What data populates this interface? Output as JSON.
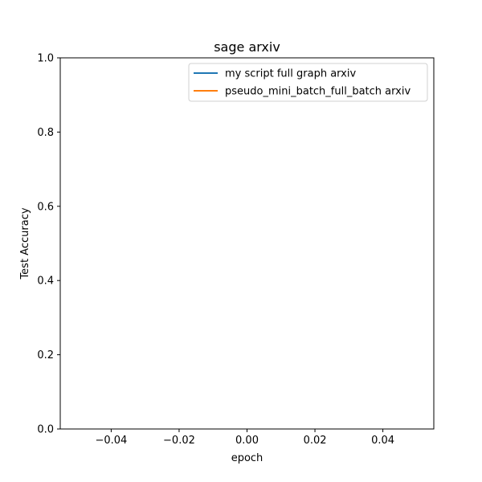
{
  "chart_data": {
    "type": "line",
    "title": "sage arxiv",
    "xlabel": "epoch",
    "ylabel": "Test Accuracy",
    "xlim": [
      -0.055,
      0.055
    ],
    "ylim": [
      0.0,
      1.0
    ],
    "x_ticks": [
      -0.04,
      -0.02,
      0.0,
      0.02,
      0.04
    ],
    "x_tick_labels": [
      "−0.04",
      "−0.02",
      "0.00",
      "0.02",
      "0.04"
    ],
    "y_ticks": [
      0.0,
      0.2,
      0.4,
      0.6,
      0.8,
      1.0
    ],
    "y_tick_labels": [
      "0.0",
      "0.2",
      "0.4",
      "0.6",
      "0.8",
      "1.0"
    ],
    "grid": false,
    "legend_position": "top-right",
    "series": [
      {
        "name": "my script full graph arxiv",
        "color": "#1f77b4",
        "x": [],
        "y": []
      },
      {
        "name": "pseudo_mini_batch_full_batch arxiv",
        "color": "#ff7f0e",
        "x": [],
        "y": []
      }
    ]
  }
}
